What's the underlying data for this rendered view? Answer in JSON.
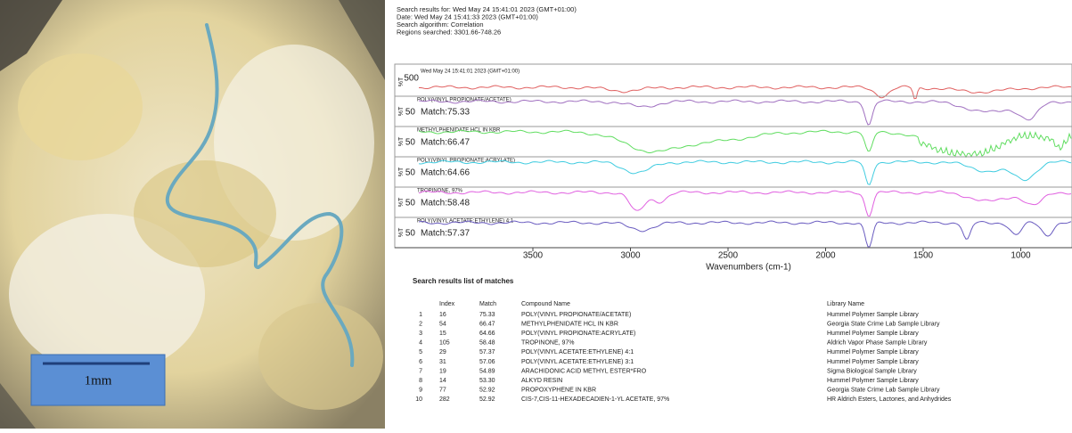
{
  "photo": {
    "scale_label": "1mm"
  },
  "header": {
    "lines": [
      "Search results for:  Wed May 24 15:41:01 2023 (GMT+01:00)",
      "Date:  Wed May 24 15:41:33 2023 (GMT+01:00)",
      "Search algorithm:  Correlation",
      "Regions searched:  3301.66-748.26"
    ]
  },
  "spectrum": {
    "query_label": "Wed May 24 15:41:01 2023 (GMT+01:00)",
    "query_scale": "500",
    "y_label": "%T",
    "panels": [
      {
        "name": "POLY(VINYL PROPIONATE/ACETATE)",
        "match": "Match:75.33",
        "scale": "50"
      },
      {
        "name": "METHYLPHENIDATE HCL IN KBR",
        "match": "Match:66.47",
        "scale": "50"
      },
      {
        "name": "POLY(VINYL PROPIONATE:ACRYLATE)",
        "match": "Match:64.66",
        "scale": "50"
      },
      {
        "name": "TROPINONE, 97%",
        "match": "Match:58.48",
        "scale": "50"
      },
      {
        "name": "POLY(VINYL ACETATE:ETHYLENE) 4:1",
        "match": "Match:57.37",
        "scale": "50"
      }
    ],
    "xticks": [
      "3500",
      "3000",
      "2500",
      "2000",
      "1500",
      "1000"
    ],
    "x_label": "Wavenumbers (cm-1)"
  },
  "table": {
    "title": "Search results list of matches",
    "columns": [
      "Index",
      "Match",
      "Compound Name",
      "Library Name"
    ],
    "rows": [
      [
        "1",
        "16",
        "75.33",
        "POLY(VINYL PROPIONATE/ACETATE)",
        "Hummel Polymer Sample Library"
      ],
      [
        "2",
        "54",
        "66.47",
        "METHYLPHENIDATE HCL IN KBR",
        "Georgia State Crime Lab Sample Library"
      ],
      [
        "3",
        "15",
        "64.66",
        "POLY(VINYL PROPIONATE:ACRYLATE)",
        "Hummel Polymer Sample Library"
      ],
      [
        "4",
        "105",
        "58.48",
        "TROPINONE, 97%",
        "Aldrich Vapor Phase Sample Library"
      ],
      [
        "5",
        "29",
        "57.37",
        "POLY(VINYL ACETATE:ETHYLENE) 4:1",
        "Hummel Polymer Sample Library"
      ],
      [
        "6",
        "31",
        "57.06",
        "POLY(VINYL ACETATE:ETHYLENE) 3:1",
        "Hummel Polymer Sample Library"
      ],
      [
        "7",
        "19",
        "54.89",
        "ARACHIDONIC ACID METHYL ESTER*FRO",
        "Sigma Biological Sample Library"
      ],
      [
        "8",
        "14",
        "53.30",
        "ALKYD RESIN",
        "Hummel Polymer Sample Library"
      ],
      [
        "9",
        "77",
        "52.92",
        "PROPOXYPHENE IN KBR",
        "Georgia State Crime Lab Sample Library"
      ],
      [
        "10",
        "282",
        "52.92",
        "CIS-7,CIS-11-HEXADECADIEN-1-YL ACETATE, 97%",
        "HR Aldrich Esters, Lactones, and Anhydrides"
      ]
    ]
  }
}
